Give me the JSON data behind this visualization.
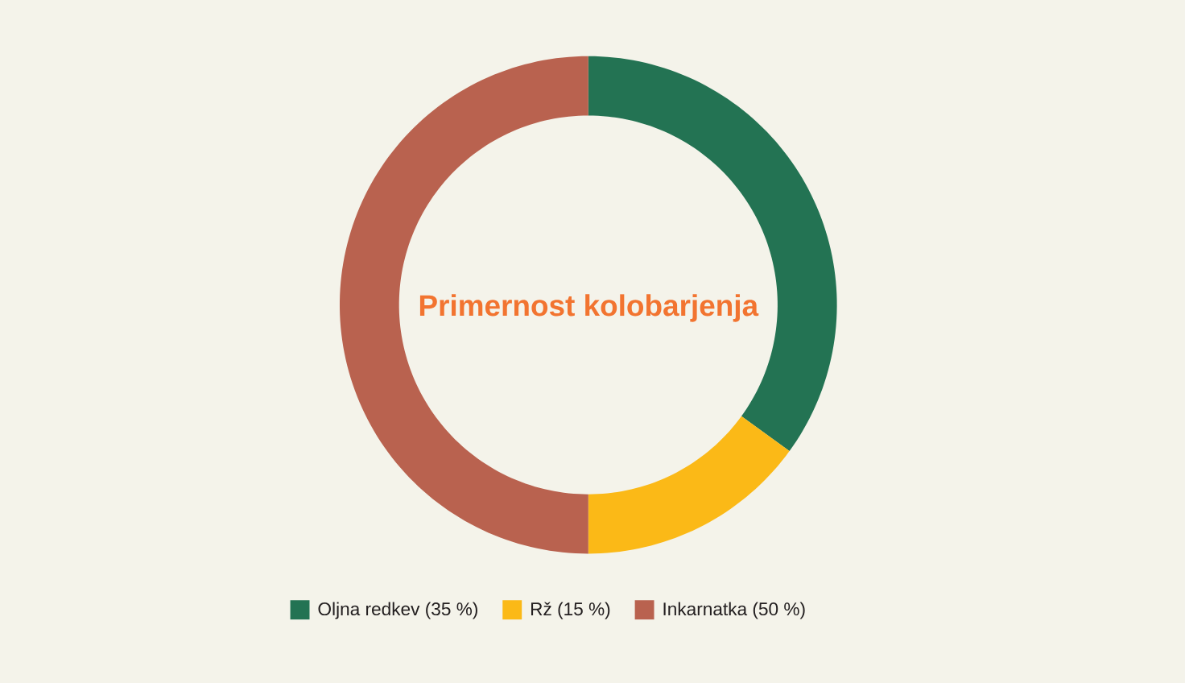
{
  "chart_data": {
    "type": "donut",
    "title": "Primernost kolobarjenja",
    "categories": [
      "Oljna redkev (35 %)",
      "Rž (15 %)",
      "Inkarnatka (50 %)"
    ],
    "values": [
      35,
      15,
      50
    ],
    "colors": [
      "#237353",
      "#fbb917",
      "#b9624f"
    ],
    "legend": "bottom"
  }
}
